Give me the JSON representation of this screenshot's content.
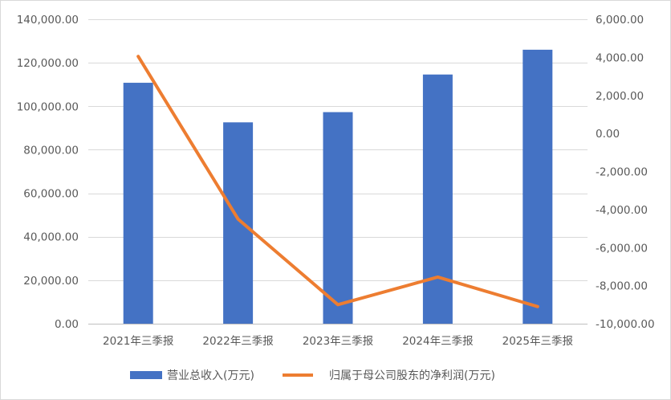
{
  "chart_data": {
    "type": "bar",
    "categories": [
      "2021年三季报",
      "2022年三季报",
      "2023年三季报",
      "2024年三季报",
      "2025年三季报"
    ],
    "series": [
      {
        "name": "营业总收入(万元)",
        "type": "bar",
        "axis": "left",
        "color": "#4472c4",
        "values": [
          110800,
          92600,
          97300,
          114600,
          126000
        ]
      },
      {
        "name": "归属于母公司股东的净利润(万元)",
        "type": "line",
        "axis": "right",
        "color": "#ed7d31",
        "values": [
          4050,
          -4500,
          -9000,
          -7550,
          -9100
        ]
      }
    ],
    "y_left": {
      "ylim": [
        0,
        140000
      ],
      "ticks": [
        0,
        20000,
        40000,
        60000,
        80000,
        100000,
        120000,
        140000
      ],
      "tick_labels": [
        "0.00",
        "20,000.00",
        "40,000.00",
        "60,000.00",
        "80,000.00",
        "100,000.00",
        "120,000.00",
        "140,000.00"
      ]
    },
    "y_right": {
      "ylim": [
        -10000,
        6000
      ],
      "ticks": [
        -10000,
        -8000,
        -6000,
        -4000,
        -2000,
        0,
        2000,
        4000,
        6000
      ],
      "tick_labels": [
        "-10,000.00",
        "-8,000.00",
        "-6,000.00",
        "-4,000.00",
        "-2,000.00",
        "0.00",
        "2,000.00",
        "4,000.00",
        "6,000.00"
      ]
    },
    "grid": true,
    "legend": "bottom"
  }
}
